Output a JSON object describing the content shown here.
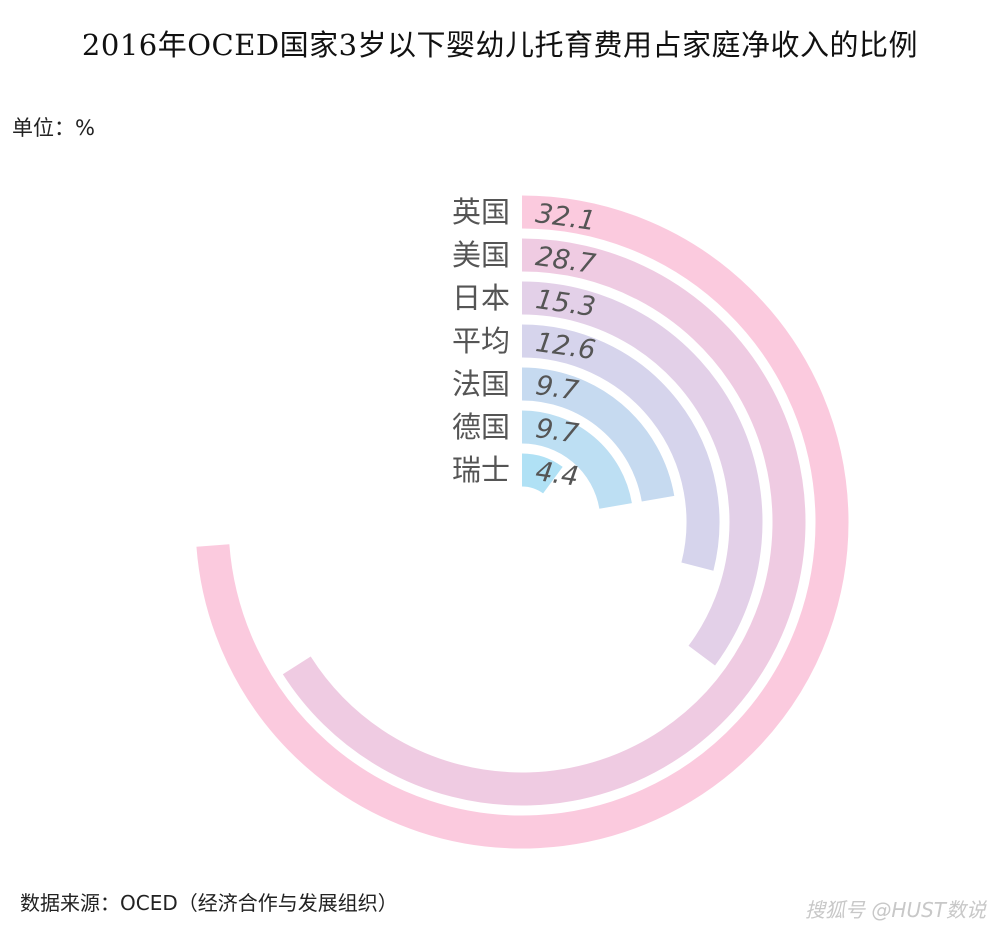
{
  "title": "2016年OCED国家3岁以下婴幼儿托育费用占家庭净收入的比例",
  "unit_label": "单位：%",
  "source": "数据来源：OCED（经济合作与发展组织）",
  "watermark": "搜狐号 @HUST数说",
  "chart_data": {
    "type": "radial-bar",
    "title": "2016年OCED国家3岁以下婴幼儿托育费用占家庭净收入的比例",
    "unit": "%",
    "categories": [
      "英国",
      "美国",
      "日本",
      "平均",
      "法国",
      "德国",
      "瑞士"
    ],
    "values": [
      32.1,
      28.7,
      15.3,
      12.6,
      9.7,
      9.7,
      4.4
    ],
    "value_labels": [
      "32.1",
      "28.7",
      "15.3",
      "12.6",
      "9.7",
      "9.7",
      "4.4"
    ],
    "max": 43.5,
    "colors": [
      "#fbcade",
      "#efcbe2",
      "#e3d0e8",
      "#d6d4ec",
      "#c6daf0",
      "#bddff3",
      "#b0e1f5"
    ]
  }
}
